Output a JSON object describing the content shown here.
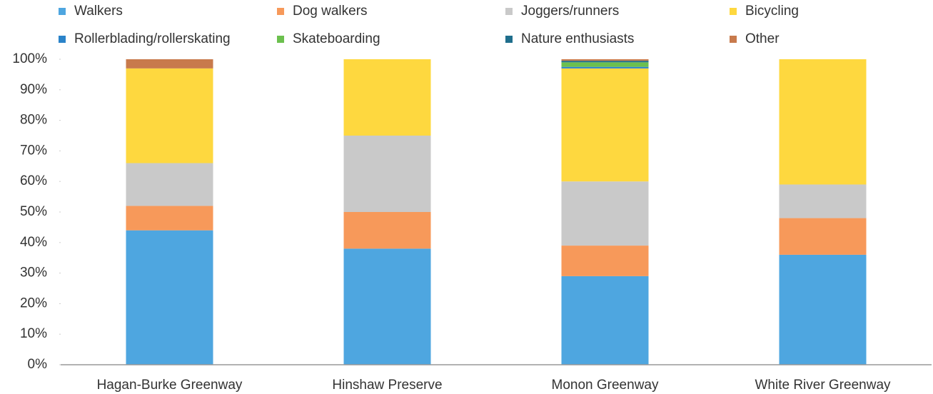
{
  "chart_data": {
    "type": "stacked_bar",
    "categories": [
      "Hagan-Burke Greenway",
      "Hinshaw Preserve",
      "Monon Greenway",
      "White River Greenway"
    ],
    "series": [
      {
        "name": "Walkers",
        "color": "#4ea6e0",
        "values": [
          44,
          38,
          29,
          36
        ]
      },
      {
        "name": "Dog walkers",
        "color": "#f7995a",
        "values": [
          8,
          12,
          10,
          12
        ]
      },
      {
        "name": "Joggers/runners",
        "color": "#c9c9c9",
        "values": [
          14,
          25,
          21,
          11
        ]
      },
      {
        "name": "Bicycling",
        "color": "#fed83f",
        "values": [
          31,
          25,
          37,
          41
        ]
      },
      {
        "name": "Rollerblading/rollerskating",
        "color": "#2a83c9",
        "values": [
          0,
          0,
          0.5,
          0
        ]
      },
      {
        "name": "Skateboarding",
        "color": "#6cc04e",
        "values": [
          0,
          0,
          1.5,
          0
        ]
      },
      {
        "name": "Nature enthusiasts",
        "color": "#1f6e8c",
        "values": [
          0,
          0,
          0.5,
          0
        ]
      },
      {
        "name": "Other",
        "color": "#c87a4c",
        "values": [
          3,
          0,
          0.5,
          0
        ]
      }
    ],
    "ylim": [
      0,
      100
    ],
    "yticks": [
      {
        "value": 0,
        "label": "0%"
      },
      {
        "value": 10,
        "label": "10%"
      },
      {
        "value": 20,
        "label": "20%"
      },
      {
        "value": 30,
        "label": "30%"
      },
      {
        "value": 40,
        "label": "40%"
      },
      {
        "value": 50,
        "label": "50%"
      },
      {
        "value": 60,
        "label": "60%"
      },
      {
        "value": 70,
        "label": "70%"
      },
      {
        "value": 80,
        "label": "80%"
      },
      {
        "value": 90,
        "label": "90%"
      },
      {
        "value": 100,
        "label": "100%"
      }
    ],
    "legend": "top"
  }
}
